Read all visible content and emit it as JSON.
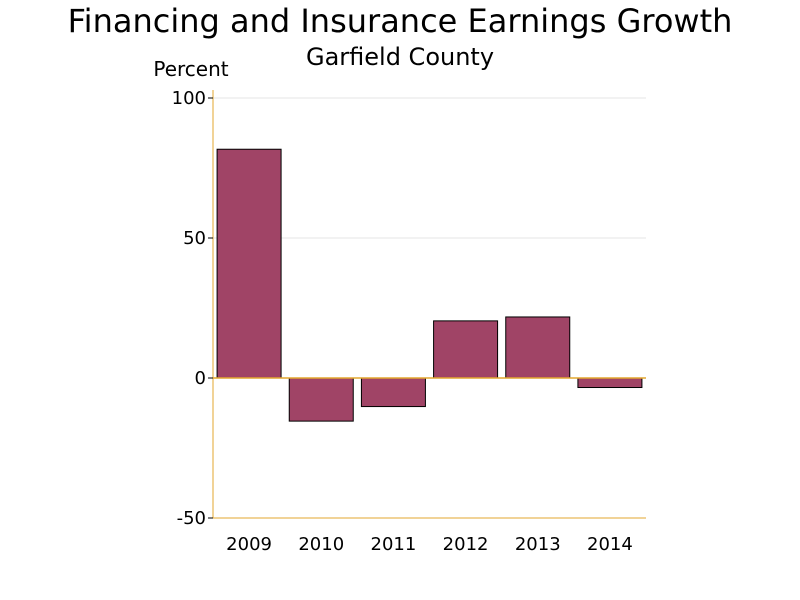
{
  "chart_data": {
    "type": "bar",
    "title": "Financing and Insurance Earnings Growth",
    "subtitle": "Garfield County",
    "ylabel": "Percent",
    "xlabel": "",
    "categories": [
      "2009",
      "2010",
      "2011",
      "2012",
      "2013",
      "2014"
    ],
    "values": [
      81.7,
      -15.4,
      -10.2,
      20.4,
      21.8,
      -3.4
    ],
    "ylim": [
      -50,
      100
    ],
    "yticks": [
      -50,
      0,
      50,
      100
    ],
    "grid": true,
    "legend": "none"
  },
  "colors": {
    "bar_fill": "#A04466",
    "bar_stroke": "#000000",
    "axis": "#E3A72F",
    "gridline": "#E6E6E6",
    "background": "#FFFFFF"
  }
}
